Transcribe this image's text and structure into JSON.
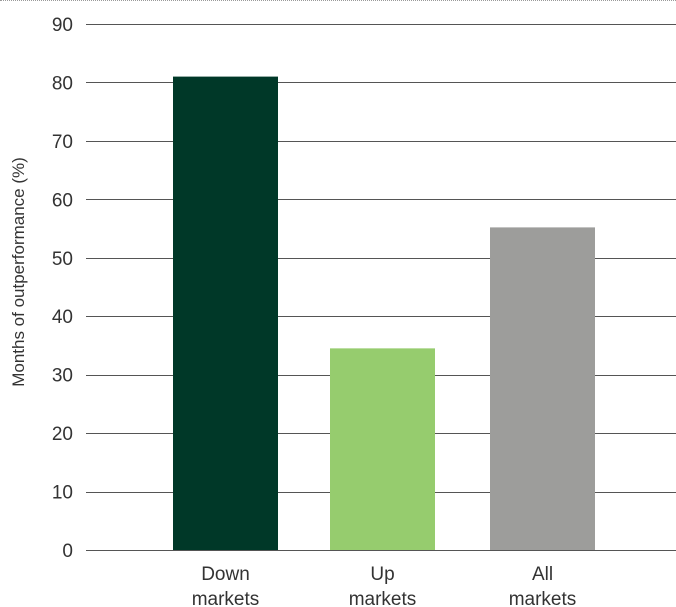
{
  "chart_data": {
    "type": "bar",
    "title": "",
    "xlabel": "",
    "ylabel": "Months of outperformance (%)",
    "categories": [
      [
        "Down",
        "markets"
      ],
      [
        "Up",
        "markets"
      ],
      [
        "All",
        "markets"
      ]
    ],
    "values": [
      81,
      34.5,
      55.2
    ],
    "colors": [
      "#003828",
      "#96cc6e",
      "#9d9d9b"
    ],
    "ylim": [
      0,
      90
    ],
    "yticks": [
      0,
      10,
      20,
      30,
      40,
      50,
      60,
      70,
      80,
      90
    ],
    "grid": true,
    "legend": "none"
  }
}
